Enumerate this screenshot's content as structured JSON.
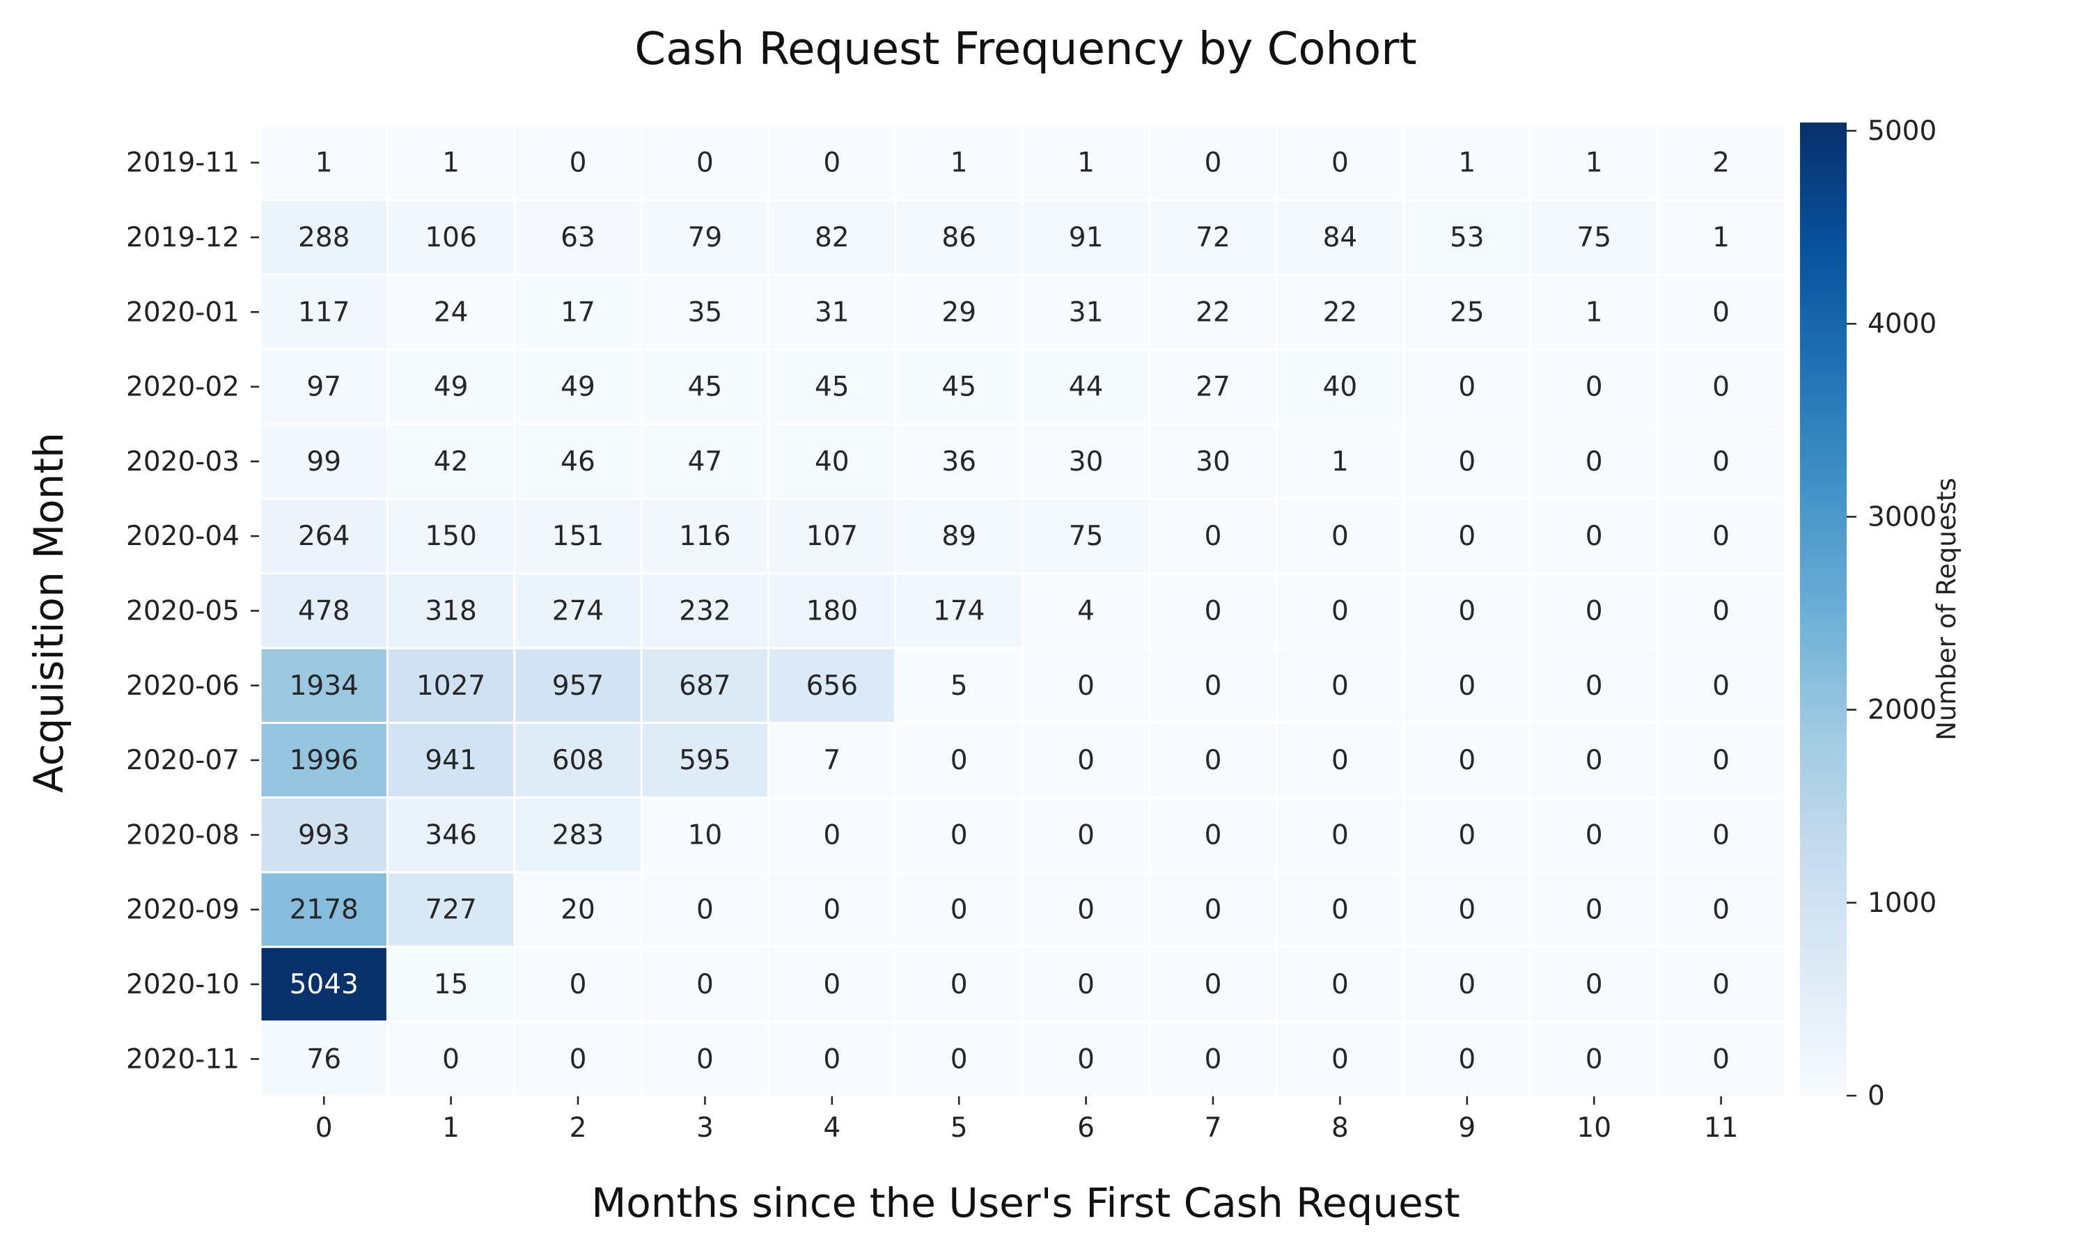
{
  "chart_data": {
    "type": "heatmap",
    "title": "Cash Request Frequency by Cohort",
    "xlabel": "Months since the User's First Cash Request",
    "ylabel": "Acquisition Month",
    "x_categories": [
      "0",
      "1",
      "2",
      "3",
      "4",
      "5",
      "6",
      "7",
      "8",
      "9",
      "10",
      "11"
    ],
    "y_categories": [
      "2019-11",
      "2019-12",
      "2020-01",
      "2020-02",
      "2020-03",
      "2020-04",
      "2020-05",
      "2020-06",
      "2020-07",
      "2020-08",
      "2020-09",
      "2020-10",
      "2020-11"
    ],
    "values": [
      [
        1,
        1,
        0,
        0,
        0,
        1,
        1,
        0,
        0,
        1,
        1,
        2
      ],
      [
        288,
        106,
        63,
        79,
        82,
        86,
        91,
        72,
        84,
        53,
        75,
        1
      ],
      [
        117,
        24,
        17,
        35,
        31,
        29,
        31,
        22,
        22,
        25,
        1,
        0
      ],
      [
        97,
        49,
        49,
        45,
        45,
        45,
        44,
        27,
        40,
        0,
        0,
        0
      ],
      [
        99,
        42,
        46,
        47,
        40,
        36,
        30,
        30,
        1,
        0,
        0,
        0
      ],
      [
        264,
        150,
        151,
        116,
        107,
        89,
        75,
        0,
        0,
        0,
        0,
        0
      ],
      [
        478,
        318,
        274,
        232,
        180,
        174,
        4,
        0,
        0,
        0,
        0,
        0
      ],
      [
        1934,
        1027,
        957,
        687,
        656,
        5,
        0,
        0,
        0,
        0,
        0,
        0
      ],
      [
        1996,
        941,
        608,
        595,
        7,
        0,
        0,
        0,
        0,
        0,
        0,
        0
      ],
      [
        993,
        346,
        283,
        10,
        0,
        0,
        0,
        0,
        0,
        0,
        0,
        0
      ],
      [
        2178,
        727,
        20,
        0,
        0,
        0,
        0,
        0,
        0,
        0,
        0,
        0
      ],
      [
        5043,
        15,
        0,
        0,
        0,
        0,
        0,
        0,
        0,
        0,
        0,
        0
      ],
      [
        76,
        0,
        0,
        0,
        0,
        0,
        0,
        0,
        0,
        0,
        0,
        0
      ]
    ],
    "colorbar": {
      "label": "Number of Requests",
      "range": [
        0,
        5043
      ],
      "ticks": [
        0,
        1000,
        2000,
        3000,
        4000,
        5000
      ],
      "colormap": "Blues",
      "colors": [
        "#f7fbff",
        "#deebf7",
        "#c6dbef",
        "#9ecae1",
        "#6baed6",
        "#4292c6",
        "#2171b5",
        "#08519c",
        "#08306b"
      ]
    },
    "grid": false
  }
}
